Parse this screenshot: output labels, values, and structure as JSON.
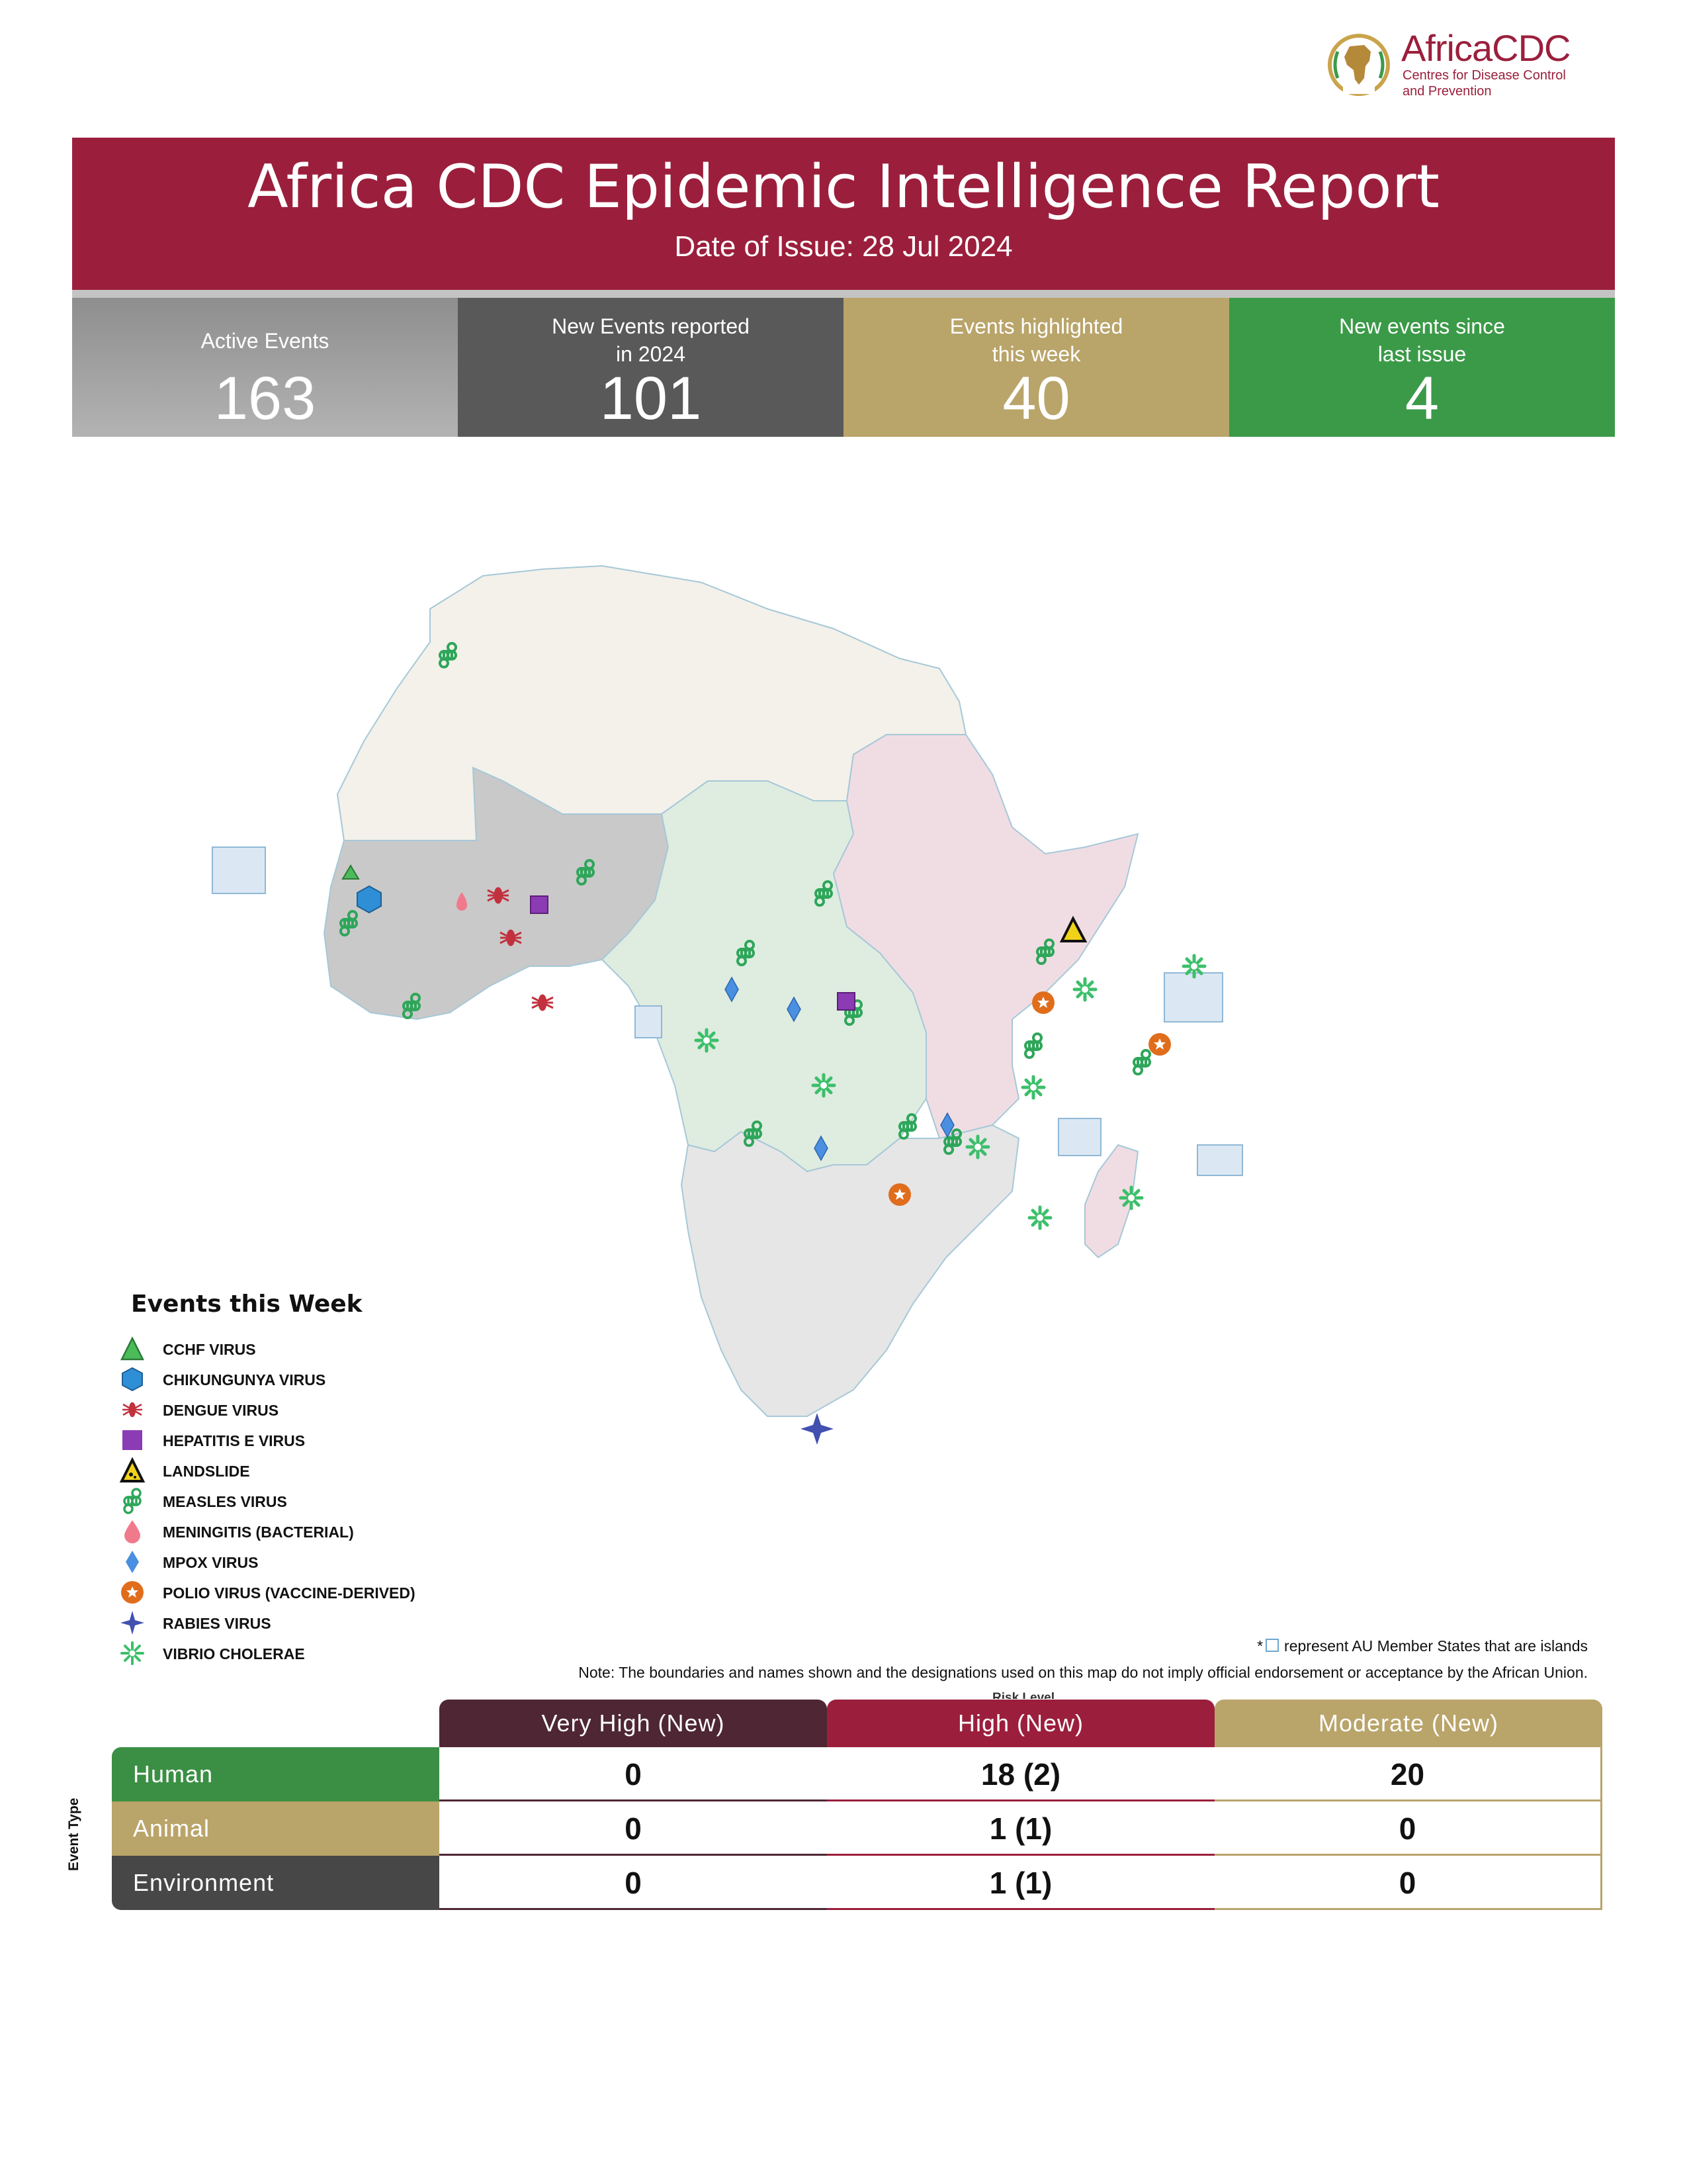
{
  "logo": {
    "brand": "AfricaCDC",
    "subtitle_line1": "Centres for Disease Control",
    "subtitle_line2": "and Prevention",
    "seal_text": "AFRICA CDC"
  },
  "header": {
    "title": "Africa CDC Epidemic Intelligence Report",
    "date": "Date of Issue: 28 Jul 2024"
  },
  "stats": [
    {
      "label_line1": "Active Events",
      "label_line2": "",
      "value": "163",
      "color": "#a0a0a0"
    },
    {
      "label_line1": "New Events reported",
      "label_line2": "in 2024",
      "value": "101",
      "color": "#595959"
    },
    {
      "label_line1": "Events highlighted",
      "label_line2": "this week",
      "value": "40",
      "color": "#b9a46a"
    },
    {
      "label_line1": "New events since",
      "label_line2": "last issue",
      "value": "4",
      "color": "#3b9a48"
    }
  ],
  "map": {
    "region_colors": {
      "north": "#f3f1ea",
      "west": "#c9c9c9",
      "central": "#dfece0",
      "east": "#f0dde3",
      "south": "#e6e6e6",
      "island": "#dbe8f3"
    }
  },
  "legend": {
    "title": "Events this Week",
    "items": [
      {
        "label": "CCHF VIRUS",
        "icon": "triangle-icon",
        "color": "#4cbb5a"
      },
      {
        "label": "CHIKUNGUNYA VIRUS",
        "icon": "hexagon-icon",
        "color": "#2e8fd6"
      },
      {
        "label": "DENGUE VIRUS",
        "icon": "mosquito-icon",
        "color": "#c3313e"
      },
      {
        "label": "HEPATITIS E VIRUS",
        "icon": "square-icon",
        "color": "#8b3bb3"
      },
      {
        "label": "LANDSLIDE",
        "icon": "landslide-icon",
        "color": "#f0d21a"
      },
      {
        "label": "MEASLES VIRUS",
        "icon": "command-icon",
        "color": "#2ea65a"
      },
      {
        "label": "MENINGITIS (BACTERIAL)",
        "icon": "droplet-icon",
        "color": "#f07a8c"
      },
      {
        "label": "MPOX VIRUS",
        "icon": "diamond-icon",
        "color": "#4a8fe0"
      },
      {
        "label": "POLIO VIRUS (VACCINE-DERIVED)",
        "icon": "star-circle-icon",
        "color": "#e06d1c"
      },
      {
        "label": "RABIES VIRUS",
        "icon": "four-point-star-icon",
        "color": "#4250b0"
      },
      {
        "label": "VIBRIO CHOLERAE",
        "icon": "burst-icon",
        "color": "#3cbf6a"
      }
    ]
  },
  "notes": {
    "islands_prefix": "*",
    "islands": "represent AU Member States that are islands",
    "disclaimer": "Note: The boundaries and names shown and the designations used on this map do not imply official endorsement or acceptance by the African Union."
  },
  "risk_table": {
    "caption": "Risk Level",
    "axis_label": "Event Type",
    "columns": [
      {
        "label": "Very High (New)",
        "color": "#4e2634"
      },
      {
        "label": "High (New)",
        "color": "#9b1f3c"
      },
      {
        "label": "Moderate (New)",
        "color": "#b9a46a"
      }
    ],
    "rows": [
      {
        "label": "Human",
        "color": "#3b8f44",
        "values": [
          "0",
          "18 (2)",
          "20"
        ]
      },
      {
        "label": "Animal",
        "color": "#b9a46a",
        "values": [
          "0",
          "1 (1)",
          "0"
        ]
      },
      {
        "label": "Environment",
        "color": "#474747",
        "values": [
          "0",
          "1 (1)",
          "0"
        ]
      }
    ]
  }
}
